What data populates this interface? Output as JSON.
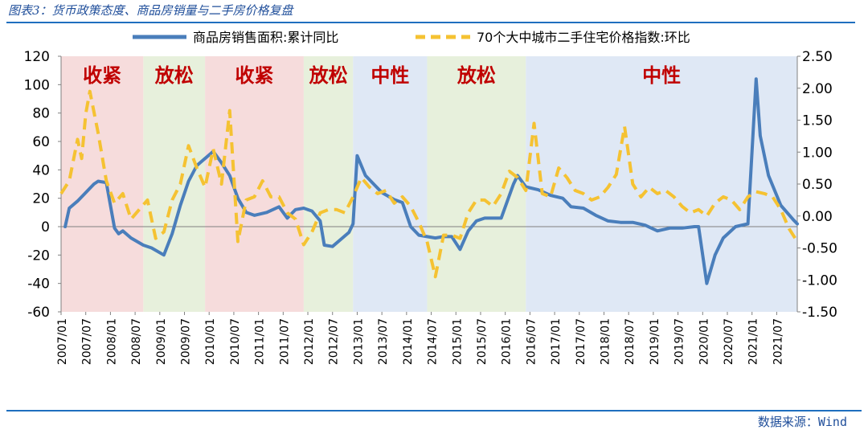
{
  "figure": {
    "title": "图表3：货币政策态度、商品房销量与二手房价格复盘",
    "source": "数据来源：Wind"
  },
  "colors": {
    "sales": "#4a7ebb",
    "price": "#f5c232",
    "tight": "#f6dcdc",
    "loose": "#e7f0dc",
    "neutral": "#dfe8f5",
    "band_label": "#c00000"
  },
  "chart_data": {
    "type": "line",
    "title": "",
    "legend_position": "top",
    "grid": false,
    "x_ticks": [
      "2007/01",
      "2007/07",
      "2008/01",
      "2008/07",
      "2009/01",
      "2009/07",
      "2010/01",
      "2010/07",
      "2011/01",
      "2011/07",
      "2012/01",
      "2012/07",
      "2013/01",
      "2013/07",
      "2014/01",
      "2014/07",
      "2015/01",
      "2015/07",
      "2016/01",
      "2016/07",
      "2017/01",
      "2017/07",
      "2018/01",
      "2018/07",
      "2019/01",
      "2019/07",
      "2020/01",
      "2020/07",
      "2021/01",
      "2021/07"
    ],
    "x_range": [
      "2007/01",
      "2021/12"
    ],
    "y_left": {
      "min": -60,
      "max": 120,
      "ticks": [
        "120",
        "100",
        "80",
        "60",
        "40",
        "20",
        "0",
        "-20",
        "-40",
        "-60"
      ]
    },
    "y_right": {
      "min": -1.5,
      "max": 2.5,
      "ticks": [
        "2.50",
        "2.00",
        "1.50",
        "1.00",
        "0.50",
        "0.00",
        "-0.50",
        "-1.00",
        "-1.50"
      ]
    },
    "policy_bands": [
      {
        "label": "收紧",
        "start": "2007/01",
        "end": "2008/09",
        "type": "tight"
      },
      {
        "label": "放松",
        "start": "2008/09",
        "end": "2009/12",
        "type": "loose"
      },
      {
        "label": "收紧",
        "start": "2009/12",
        "end": "2011/12",
        "type": "tight"
      },
      {
        "label": "放松",
        "start": "2011/12",
        "end": "2012/12",
        "type": "loose"
      },
      {
        "label": "中性",
        "start": "2012/12",
        "end": "2014/06",
        "type": "neutral"
      },
      {
        "label": "放松",
        "start": "2014/06",
        "end": "2016/06",
        "type": "loose"
      },
      {
        "label": "中性",
        "start": "2016/06",
        "end": "2021/12",
        "type": "neutral"
      }
    ],
    "series": [
      {
        "name": "商品房销售面积:累计同比",
        "axis": "left",
        "style": "solid",
        "points": [
          [
            "2007/02",
            0
          ],
          [
            "2007/03",
            13
          ],
          [
            "2007/05",
            18
          ],
          [
            "2007/07",
            24
          ],
          [
            "2007/09",
            30
          ],
          [
            "2007/10",
            32
          ],
          [
            "2007/12",
            31
          ],
          [
            "2008/02",
            -1
          ],
          [
            "2008/03",
            -5
          ],
          [
            "2008/04",
            -3
          ],
          [
            "2008/06",
            -8
          ],
          [
            "2008/09",
            -13
          ],
          [
            "2008/11",
            -15
          ],
          [
            "2009/02",
            -20
          ],
          [
            "2009/04",
            -5
          ],
          [
            "2009/06",
            15
          ],
          [
            "2009/08",
            32
          ],
          [
            "2009/10",
            43
          ],
          [
            "2009/12",
            48
          ],
          [
            "2010/02",
            53
          ],
          [
            "2010/04",
            45
          ],
          [
            "2010/06",
            36
          ],
          [
            "2010/08",
            20
          ],
          [
            "2010/10",
            10
          ],
          [
            "2010/12",
            8
          ],
          [
            "2011/03",
            10
          ],
          [
            "2011/06",
            14
          ],
          [
            "2011/08",
            6
          ],
          [
            "2011/10",
            12
          ],
          [
            "2011/12",
            13
          ],
          [
            "2012/02",
            11
          ],
          [
            "2012/04",
            4
          ],
          [
            "2012/05",
            -13
          ],
          [
            "2012/07",
            -14
          ],
          [
            "2012/09",
            -9
          ],
          [
            "2012/11",
            -4
          ],
          [
            "2012/12",
            2
          ],
          [
            "2013/01",
            50
          ],
          [
            "2013/03",
            36
          ],
          [
            "2013/05",
            30
          ],
          [
            "2013/07",
            24
          ],
          [
            "2013/10",
            19
          ],
          [
            "2013/12",
            17
          ],
          [
            "2014/02",
            0
          ],
          [
            "2014/04",
            -6
          ],
          [
            "2014/06",
            -7
          ],
          [
            "2014/08",
            -8
          ],
          [
            "2014/10",
            -7
          ],
          [
            "2014/12",
            -7
          ],
          [
            "2015/02",
            -16
          ],
          [
            "2015/04",
            -3
          ],
          [
            "2015/06",
            4
          ],
          [
            "2015/08",
            6
          ],
          [
            "2015/11",
            6
          ],
          [
            "2015/12",
            6
          ],
          [
            "2016/03",
            30
          ],
          [
            "2016/04",
            36
          ],
          [
            "2016/06",
            28
          ],
          [
            "2016/09",
            26
          ],
          [
            "2016/12",
            22
          ],
          [
            "2017/03",
            20
          ],
          [
            "2017/05",
            14
          ],
          [
            "2017/08",
            13
          ],
          [
            "2017/11",
            8
          ],
          [
            "2018/02",
            4
          ],
          [
            "2018/05",
            3
          ],
          [
            "2018/08",
            3
          ],
          [
            "2018/11",
            1
          ],
          [
            "2019/02",
            -3
          ],
          [
            "2019/05",
            -1
          ],
          [
            "2019/08",
            -1
          ],
          [
            "2019/11",
            0
          ],
          [
            "2019/12",
            0
          ],
          [
            "2020/02",
            -40
          ],
          [
            "2020/04",
            -20
          ],
          [
            "2020/06",
            -8
          ],
          [
            "2020/09",
            0
          ],
          [
            "2020/12",
            2
          ],
          [
            "2021/02",
            104
          ],
          [
            "2021/03",
            64
          ],
          [
            "2021/05",
            36
          ],
          [
            "2021/08",
            15
          ],
          [
            "2021/11",
            5
          ],
          [
            "2021/12",
            2
          ]
        ]
      },
      {
        "name": "70个大中城市二手住宅价格指数:环比",
        "axis": "right",
        "style": "dashed",
        "points": [
          [
            "2007/01",
            0.35
          ],
          [
            "2007/03",
            0.55
          ],
          [
            "2007/05",
            1.2
          ],
          [
            "2007/06",
            0.9
          ],
          [
            "2007/07",
            1.6
          ],
          [
            "2007/08",
            1.95
          ],
          [
            "2007/10",
            1.3
          ],
          [
            "2007/12",
            0.55
          ],
          [
            "2008/02",
            0.2
          ],
          [
            "2008/04",
            0.35
          ],
          [
            "2008/06",
            -0.05
          ],
          [
            "2008/08",
            0.1
          ],
          [
            "2008/10",
            0.25
          ],
          [
            "2008/12",
            -0.35
          ],
          [
            "2009/02",
            -0.25
          ],
          [
            "2009/04",
            0.25
          ],
          [
            "2009/06",
            0.5
          ],
          [
            "2009/08",
            1.1
          ],
          [
            "2009/10",
            0.75
          ],
          [
            "2009/12",
            0.45
          ],
          [
            "2010/02",
            1.05
          ],
          [
            "2010/04",
            0.5
          ],
          [
            "2010/06",
            1.65
          ],
          [
            "2010/08",
            -0.4
          ],
          [
            "2010/10",
            0.25
          ],
          [
            "2010/12",
            0.3
          ],
          [
            "2011/02",
            0.55
          ],
          [
            "2011/04",
            0.3
          ],
          [
            "2011/06",
            0.3
          ],
          [
            "2011/08",
            0.05
          ],
          [
            "2011/10",
            -0.05
          ],
          [
            "2011/12",
            -0.45
          ],
          [
            "2012/02",
            -0.25
          ],
          [
            "2012/04",
            0.05
          ],
          [
            "2012/06",
            0.1
          ],
          [
            "2012/08",
            0.1
          ],
          [
            "2012/10",
            0.05
          ],
          [
            "2012/12",
            0.3
          ],
          [
            "2013/02",
            0.6
          ],
          [
            "2013/04",
            0.45
          ],
          [
            "2013/06",
            0.35
          ],
          [
            "2013/08",
            0.4
          ],
          [
            "2013/10",
            0.2
          ],
          [
            "2013/12",
            0.3
          ],
          [
            "2014/02",
            0.15
          ],
          [
            "2014/04",
            -0.1
          ],
          [
            "2014/06",
            -0.4
          ],
          [
            "2014/08",
            -0.95
          ],
          [
            "2014/10",
            -0.3
          ],
          [
            "2014/12",
            -0.3
          ],
          [
            "2015/02",
            -0.35
          ],
          [
            "2015/04",
            0.05
          ],
          [
            "2015/06",
            0.25
          ],
          [
            "2015/08",
            0.25
          ],
          [
            "2015/10",
            0.15
          ],
          [
            "2015/12",
            0.35
          ],
          [
            "2016/02",
            0.7
          ],
          [
            "2016/04",
            0.6
          ],
          [
            "2016/06",
            0.4
          ],
          [
            "2016/08",
            1.45
          ],
          [
            "2016/10",
            0.35
          ],
          [
            "2016/12",
            0.3
          ],
          [
            "2017/02",
            0.75
          ],
          [
            "2017/04",
            0.6
          ],
          [
            "2017/06",
            0.4
          ],
          [
            "2017/08",
            0.35
          ],
          [
            "2017/10",
            0.25
          ],
          [
            "2017/12",
            0.3
          ],
          [
            "2018/02",
            0.45
          ],
          [
            "2018/04",
            0.65
          ],
          [
            "2018/06",
            1.4
          ],
          [
            "2018/08",
            0.5
          ],
          [
            "2018/10",
            0.3
          ],
          [
            "2018/12",
            0.45
          ],
          [
            "2019/02",
            0.35
          ],
          [
            "2019/04",
            0.4
          ],
          [
            "2019/06",
            0.3
          ],
          [
            "2019/08",
            0.15
          ],
          [
            "2019/10",
            0.05
          ],
          [
            "2019/12",
            0.1
          ],
          [
            "2020/02",
            0.0
          ],
          [
            "2020/04",
            0.2
          ],
          [
            "2020/06",
            0.3
          ],
          [
            "2020/08",
            0.25
          ],
          [
            "2020/10",
            0.1
          ],
          [
            "2020/12",
            0.3
          ],
          [
            "2021/02",
            0.38
          ],
          [
            "2021/04",
            0.35
          ],
          [
            "2021/06",
            0.3
          ],
          [
            "2021/08",
            0.1
          ],
          [
            "2021/10",
            -0.2
          ],
          [
            "2021/12",
            -0.4
          ]
        ]
      }
    ]
  }
}
